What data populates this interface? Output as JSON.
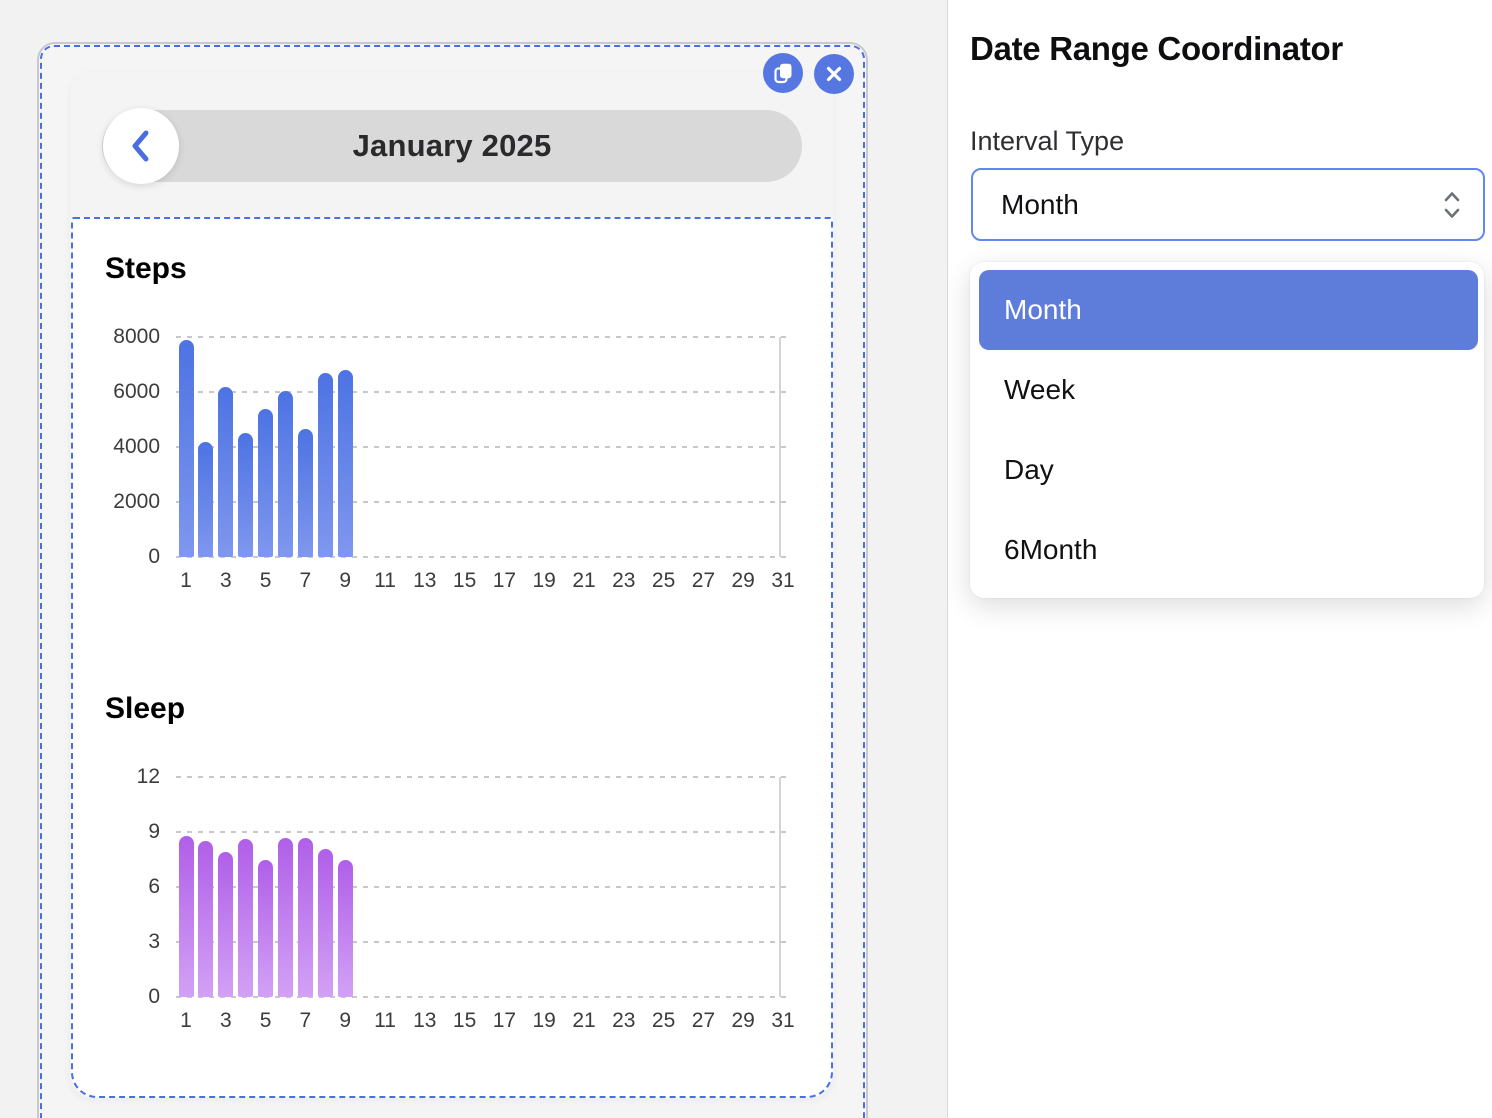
{
  "canvas": {
    "floating_buttons": [
      {
        "name": "duplicate",
        "icon": "copy-icon"
      },
      {
        "name": "close",
        "icon": "close-icon"
      }
    ]
  },
  "preview": {
    "nav": {
      "back_icon": "chevron-left-icon",
      "title": "January 2025"
    }
  },
  "panel": {
    "title": "Date Range Coordinator",
    "interval_label": "Interval Type",
    "select": {
      "value": "Month",
      "icon": "chevron-up-down-icon"
    },
    "options": [
      "Month",
      "Week",
      "Day",
      "6Month"
    ],
    "selected_option": "Month"
  },
  "colors": {
    "accent_blue": "#5677e2",
    "option_highlight": "#5e7ddb",
    "selection_dashed": "#4a6fe0",
    "select_border": "#6487ef",
    "pill_bg": "#d9d9da",
    "steps_bar_top": "#4d73e3",
    "steps_bar_bottom": "#7f97ee",
    "sleep_bar_top": "#b05fe8",
    "sleep_bar_bottom": "#d2a1f5"
  },
  "chart_data": [
    {
      "type": "bar",
      "title": "Steps",
      "x": [
        1,
        2,
        3,
        4,
        5,
        6,
        7,
        8,
        9
      ],
      "values": [
        7900,
        4200,
        6200,
        4500,
        5400,
        6050,
        4650,
        6700,
        6800
      ],
      "xticks": [
        1,
        3,
        5,
        7,
        9,
        11,
        13,
        15,
        17,
        19,
        21,
        23,
        25,
        27,
        29,
        31
      ],
      "yticks": [
        0,
        2000,
        4000,
        6000,
        8000
      ],
      "xlim": [
        0.5,
        31.5
      ],
      "ylim": [
        0,
        8000
      ],
      "xlabel": "",
      "ylabel": "",
      "grid": "horizontal-dashed",
      "legend": "none",
      "bar_gradient": [
        "#4d73e3",
        "#7f97ee"
      ]
    },
    {
      "type": "bar",
      "title": "Sleep",
      "x": [
        1,
        2,
        3,
        4,
        5,
        6,
        7,
        8,
        9
      ],
      "values": [
        8.8,
        8.5,
        7.9,
        8.6,
        7.5,
        8.7,
        8.7,
        8.1,
        7.5
      ],
      "xticks": [
        1,
        3,
        5,
        7,
        9,
        11,
        13,
        15,
        17,
        19,
        21,
        23,
        25,
        27,
        29,
        31
      ],
      "yticks": [
        0,
        3,
        6,
        9,
        12
      ],
      "xlim": [
        0.5,
        31.5
      ],
      "ylim": [
        0,
        12
      ],
      "xlabel": "",
      "ylabel": "",
      "grid": "horizontal-dashed",
      "legend": "none",
      "bar_gradient": [
        "#b05fe8",
        "#d2a1f5"
      ]
    }
  ]
}
